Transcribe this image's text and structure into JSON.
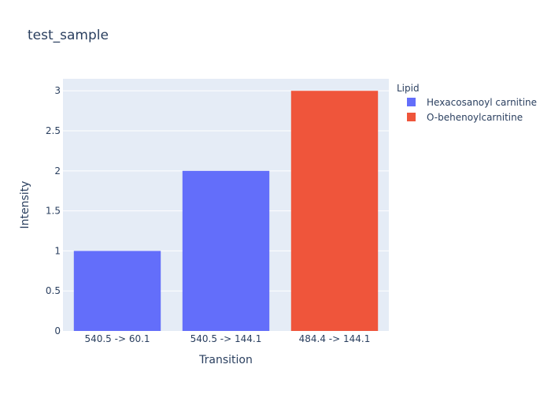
{
  "chart_data": {
    "type": "bar",
    "title": "test_sample",
    "xlabel": "Transition",
    "ylabel": "Intensity",
    "categories": [
      "540.5 -> 60.1",
      "540.5 -> 144.1",
      "484.4 -> 144.1"
    ],
    "ylim": [
      0,
      3.15
    ],
    "yticks": [
      0,
      0.5,
      1,
      1.5,
      2,
      2.5,
      3
    ],
    "ytick_labels": [
      "0",
      "0.5",
      "1",
      "1.5",
      "2",
      "2.5",
      "3"
    ],
    "grid": true,
    "plot_background": "#e5ecf6",
    "legend": {
      "title": "Lipid",
      "placement": "top-right"
    },
    "series": [
      {
        "name": "Hexacosanoyl carnitine",
        "color": "#636efa",
        "points": [
          {
            "category": "540.5 -> 60.1",
            "value": 1
          },
          {
            "category": "540.5 -> 144.1",
            "value": 2
          }
        ]
      },
      {
        "name": "O-behenoylcarnitine",
        "color": "#ef553b",
        "points": [
          {
            "category": "484.4 -> 144.1",
            "value": 3
          }
        ]
      }
    ]
  }
}
